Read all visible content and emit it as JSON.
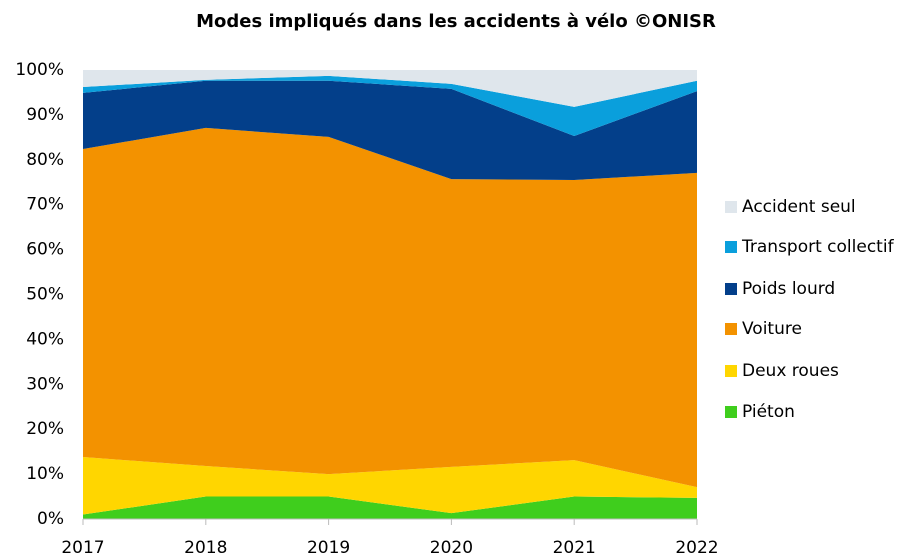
{
  "chart_data": {
    "type": "stacked_area",
    "title": "Modes impliqués dans les accidents à vélo ©ONISR",
    "categories": [
      "2017",
      "2018",
      "2019",
      "2020",
      "2021",
      "2022"
    ],
    "series": [
      {
        "name": "Piéton",
        "color": "#3fce1d",
        "values": [
          1,
          5,
          5,
          1.3,
          5,
          4.7
        ]
      },
      {
        "name": "Deux roues",
        "color": "#ffd600",
        "values": [
          12.8,
          6.8,
          5,
          10.3,
          8.1,
          2.4
        ]
      },
      {
        "name": "Voiture",
        "color": "#f39200",
        "values": [
          68.6,
          75.3,
          75.1,
          64.1,
          62.4,
          70.0
        ]
      },
      {
        "name": "Poids lourd",
        "color": "#033f8a",
        "values": [
          12.5,
          10.5,
          12.5,
          20.1,
          9.8,
          18.2
        ]
      },
      {
        "name": "Transport collectif",
        "color": "#0a9fdc",
        "values": [
          1.3,
          0.2,
          1.1,
          1.1,
          6.5,
          2.3
        ]
      },
      {
        "name": "Accident seul",
        "color": "#dfe6ec",
        "values": [
          3.8,
          2.2,
          1.3,
          3.1,
          8.2,
          2.4
        ]
      }
    ],
    "ylim": [
      0,
      100
    ],
    "yticks": [
      {
        "value": 0,
        "label": "0%"
      },
      {
        "value": 10,
        "label": "10%"
      },
      {
        "value": 20,
        "label": "20%"
      },
      {
        "value": 30,
        "label": "30%"
      },
      {
        "value": 40,
        "label": "40%"
      },
      {
        "value": 50,
        "label": "50%"
      },
      {
        "value": 60,
        "label": "60%"
      },
      {
        "value": 70,
        "label": "70%"
      },
      {
        "value": 80,
        "label": "80%"
      },
      {
        "value": 90,
        "label": "90%"
      },
      {
        "value": 100,
        "label": "100%"
      }
    ],
    "legend": "right"
  }
}
